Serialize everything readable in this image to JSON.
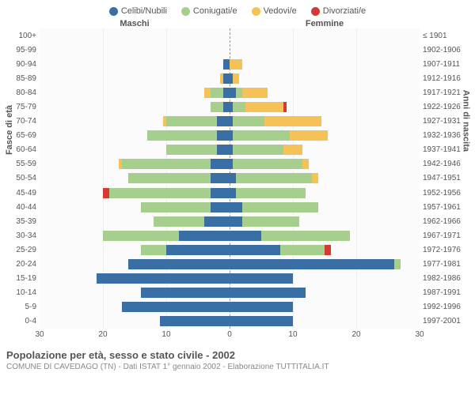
{
  "type": "population-pyramid",
  "legend": [
    {
      "label": "Celibi/Nubili",
      "color": "#3a6fa5"
    },
    {
      "label": "Coniugati/e",
      "color": "#a6cf8e"
    },
    {
      "label": "Vedovi/e",
      "color": "#f4c257"
    },
    {
      "label": "Divorziati/e",
      "color": "#d63a2e"
    }
  ],
  "heading": {
    "male": "Maschi",
    "female": "Femmine"
  },
  "y_axis_left": {
    "title": "Fasce di età"
  },
  "y_axis_right": {
    "title": "Anni di nascita"
  },
  "x_axis": {
    "max": 30,
    "ticks": [
      30,
      20,
      10,
      0,
      10,
      20,
      30
    ]
  },
  "grid_color": "#eeeeee",
  "background_color": "#fbfbfb",
  "centerline_color": "#999999",
  "bar_gap_pct": 28,
  "font_family": "Arial",
  "label_fontsize": 10,
  "rows": [
    {
      "age": "100+",
      "birth": "≤ 1901",
      "male": [
        0,
        0,
        0,
        0
      ],
      "female": [
        0,
        0,
        0,
        0
      ]
    },
    {
      "age": "95-99",
      "birth": "1902-1906",
      "male": [
        0,
        0,
        0,
        0
      ],
      "female": [
        0,
        0,
        0,
        0
      ]
    },
    {
      "age": "90-94",
      "birth": "1907-1911",
      "male": [
        1,
        0,
        0,
        0
      ],
      "female": [
        0,
        0,
        2,
        0
      ]
    },
    {
      "age": "85-89",
      "birth": "1912-1916",
      "male": [
        1,
        0,
        0.5,
        0
      ],
      "female": [
        0.5,
        0,
        1,
        0
      ]
    },
    {
      "age": "80-84",
      "birth": "1917-1921",
      "male": [
        1,
        2,
        1,
        0
      ],
      "female": [
        1,
        1,
        4,
        0
      ]
    },
    {
      "age": "75-79",
      "birth": "1922-1926",
      "male": [
        1,
        2,
        0,
        0
      ],
      "female": [
        0.5,
        2,
        6,
        0.5
      ]
    },
    {
      "age": "70-74",
      "birth": "1927-1931",
      "male": [
        2,
        8,
        0.5,
        0
      ],
      "female": [
        0.5,
        5,
        9,
        0
      ]
    },
    {
      "age": "65-69",
      "birth": "1932-1936",
      "male": [
        2,
        11,
        0,
        0
      ],
      "female": [
        0.5,
        9,
        6,
        0
      ]
    },
    {
      "age": "60-64",
      "birth": "1937-1941",
      "male": [
        2,
        8,
        0,
        0
      ],
      "female": [
        0.5,
        8,
        3,
        0
      ]
    },
    {
      "age": "55-59",
      "birth": "1942-1946",
      "male": [
        3,
        14,
        0.5,
        0
      ],
      "female": [
        0.5,
        11,
        1,
        0
      ]
    },
    {
      "age": "50-54",
      "birth": "1947-1951",
      "male": [
        3,
        13,
        0,
        0
      ],
      "female": [
        1,
        12,
        1,
        0
      ]
    },
    {
      "age": "45-49",
      "birth": "1952-1956",
      "male": [
        3,
        16,
        0,
        1
      ],
      "female": [
        1,
        11,
        0,
        0
      ]
    },
    {
      "age": "40-44",
      "birth": "1957-1961",
      "male": [
        3,
        11,
        0,
        0
      ],
      "female": [
        2,
        12,
        0,
        0
      ]
    },
    {
      "age": "35-39",
      "birth": "1962-1966",
      "male": [
        4,
        8,
        0,
        0
      ],
      "female": [
        2,
        9,
        0,
        0
      ]
    },
    {
      "age": "30-34",
      "birth": "1967-1971",
      "male": [
        8,
        12,
        0,
        0
      ],
      "female": [
        5,
        14,
        0,
        0
      ]
    },
    {
      "age": "25-29",
      "birth": "1972-1976",
      "male": [
        10,
        4,
        0,
        0
      ],
      "female": [
        8,
        7,
        0,
        1
      ]
    },
    {
      "age": "20-24",
      "birth": "1977-1981",
      "male": [
        16,
        0,
        0,
        0
      ],
      "female": [
        26,
        1,
        0,
        0
      ]
    },
    {
      "age": "15-19",
      "birth": "1982-1986",
      "male": [
        21,
        0,
        0,
        0
      ],
      "female": [
        10,
        0,
        0,
        0
      ]
    },
    {
      "age": "10-14",
      "birth": "1987-1991",
      "male": [
        14,
        0,
        0,
        0
      ],
      "female": [
        12,
        0,
        0,
        0
      ]
    },
    {
      "age": "5-9",
      "birth": "1992-1996",
      "male": [
        17,
        0,
        0,
        0
      ],
      "female": [
        10,
        0,
        0,
        0
      ]
    },
    {
      "age": "0-4",
      "birth": "1997-2001",
      "male": [
        11,
        0,
        0,
        0
      ],
      "female": [
        10,
        0,
        0,
        0
      ]
    }
  ],
  "footer": {
    "title": "Popolazione per età, sesso e stato civile - 2002",
    "subtitle": "COMUNE DI CAVEDAGO (TN) - Dati ISTAT 1° gennaio 2002 - Elaborazione TUTTITALIA.IT"
  }
}
